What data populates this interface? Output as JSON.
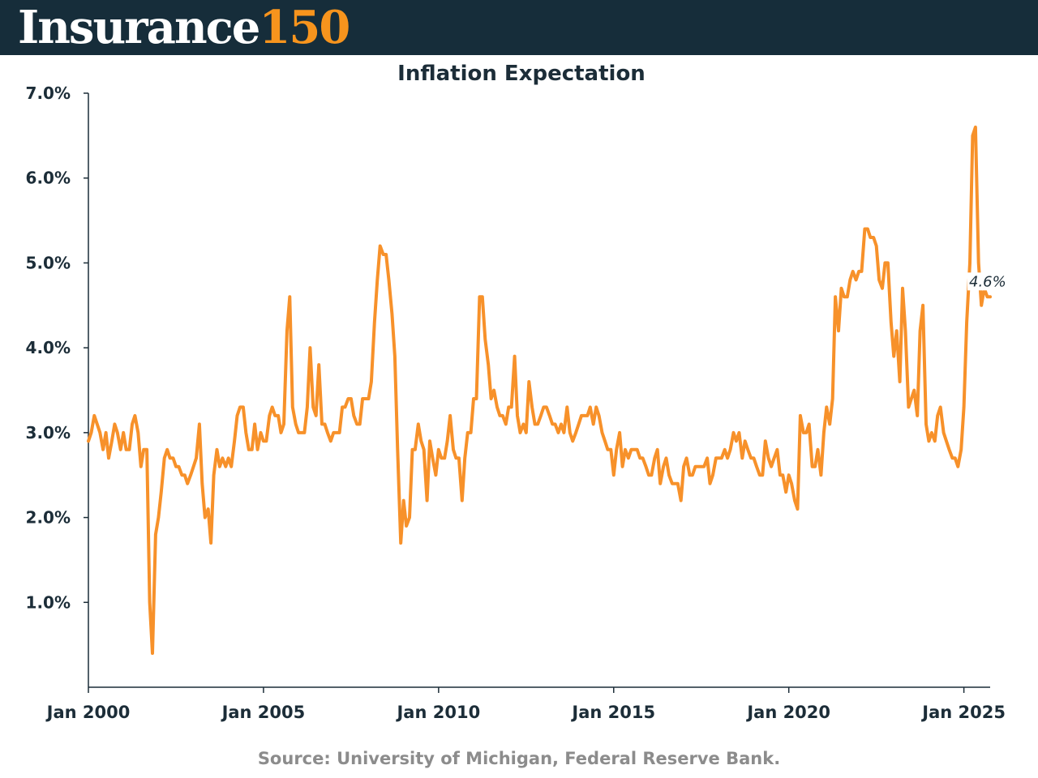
{
  "brand": {
    "name_word": "Insurance",
    "name_number": "150"
  },
  "source": "Source: University of Michigan, Federal Reserve Bank.",
  "colors": {
    "header_bg": "#162d3a",
    "accent": "#f7941d",
    "line": "#f7912a",
    "text": "#1c2d38",
    "source_text": "#8c8c8c"
  },
  "chart_data": {
    "type": "line",
    "title": "Inflation Expectation",
    "xlabel": "",
    "ylabel": "",
    "ylim": [
      0,
      7
    ],
    "xlim_years": [
      2000.0,
      2025.75
    ],
    "grid": false,
    "y_ticks": [
      {
        "value": 1,
        "label": "1.0%"
      },
      {
        "value": 2,
        "label": "2.0%"
      },
      {
        "value": 3,
        "label": "3.0%"
      },
      {
        "value": 4,
        "label": "4.0%"
      },
      {
        "value": 5,
        "label": "5.0%"
      },
      {
        "value": 6,
        "label": "6.0%"
      },
      {
        "value": 7,
        "label": "7.0%"
      }
    ],
    "x_ticks": [
      {
        "year": 2000,
        "label": "Jan 2000"
      },
      {
        "year": 2005,
        "label": "Jan 2005"
      },
      {
        "year": 2010,
        "label": "Jan 2010"
      },
      {
        "year": 2015,
        "label": "Jan 2015"
      },
      {
        "year": 2020,
        "label": "Jan 2020"
      },
      {
        "year": 2025,
        "label": "Jan 2025"
      }
    ],
    "end_label": "4.6%",
    "series": [
      {
        "name": "Inflation Expectation",
        "x": [
          2000.0,
          2000.08,
          2000.17,
          2000.25,
          2000.33,
          2000.42,
          2000.5,
          2000.58,
          2000.67,
          2000.75,
          2000.83,
          2000.92,
          2001.0,
          2001.08,
          2001.17,
          2001.25,
          2001.33,
          2001.42,
          2001.5,
          2001.58,
          2001.67,
          2001.75,
          2001.83,
          2001.92,
          2002.0,
          2002.08,
          2002.17,
          2002.25,
          2002.33,
          2002.42,
          2002.5,
          2002.58,
          2002.67,
          2002.75,
          2002.83,
          2002.92,
          2003.0,
          2003.08,
          2003.17,
          2003.25,
          2003.33,
          2003.42,
          2003.5,
          2003.58,
          2003.67,
          2003.75,
          2003.83,
          2003.92,
          2004.0,
          2004.08,
          2004.17,
          2004.25,
          2004.33,
          2004.42,
          2004.5,
          2004.58,
          2004.67,
          2004.75,
          2004.83,
          2004.92,
          2005.0,
          2005.08,
          2005.17,
          2005.25,
          2005.33,
          2005.42,
          2005.5,
          2005.58,
          2005.67,
          2005.75,
          2005.83,
          2005.92,
          2006.0,
          2006.08,
          2006.17,
          2006.25,
          2006.33,
          2006.42,
          2006.5,
          2006.58,
          2006.67,
          2006.75,
          2006.83,
          2006.92,
          2007.0,
          2007.08,
          2007.17,
          2007.25,
          2007.33,
          2007.42,
          2007.5,
          2007.58,
          2007.67,
          2007.75,
          2007.83,
          2007.92,
          2008.0,
          2008.08,
          2008.17,
          2008.25,
          2008.33,
          2008.42,
          2008.5,
          2008.58,
          2008.67,
          2008.75,
          2008.83,
          2008.92,
          2009.0,
          2009.08,
          2009.17,
          2009.25,
          2009.33,
          2009.42,
          2009.5,
          2009.58,
          2009.67,
          2009.75,
          2009.83,
          2009.92,
          2010.0,
          2010.08,
          2010.17,
          2010.25,
          2010.33,
          2010.42,
          2010.5,
          2010.58,
          2010.67,
          2010.75,
          2010.83,
          2010.92,
          2011.0,
          2011.08,
          2011.17,
          2011.25,
          2011.33,
          2011.42,
          2011.5,
          2011.58,
          2011.67,
          2011.75,
          2011.83,
          2011.92,
          2012.0,
          2012.08,
          2012.17,
          2012.25,
          2012.33,
          2012.42,
          2012.5,
          2012.58,
          2012.67,
          2012.75,
          2012.83,
          2012.92,
          2013.0,
          2013.08,
          2013.17,
          2013.25,
          2013.33,
          2013.42,
          2013.5,
          2013.58,
          2013.67,
          2013.75,
          2013.83,
          2013.92,
          2014.0,
          2014.08,
          2014.17,
          2014.25,
          2014.33,
          2014.42,
          2014.5,
          2014.58,
          2014.67,
          2014.75,
          2014.83,
          2014.92,
          2015.0,
          2015.08,
          2015.17,
          2015.25,
          2015.33,
          2015.42,
          2015.5,
          2015.58,
          2015.67,
          2015.75,
          2015.83,
          2015.92,
          2016.0,
          2016.08,
          2016.17,
          2016.25,
          2016.33,
          2016.42,
          2016.5,
          2016.58,
          2016.67,
          2016.75,
          2016.83,
          2016.92,
          2017.0,
          2017.08,
          2017.17,
          2017.25,
          2017.33,
          2017.42,
          2017.5,
          2017.58,
          2017.67,
          2017.75,
          2017.83,
          2017.92,
          2018.0,
          2018.08,
          2018.17,
          2018.25,
          2018.33,
          2018.42,
          2018.5,
          2018.58,
          2018.67,
          2018.75,
          2018.83,
          2018.92,
          2019.0,
          2019.08,
          2019.17,
          2019.25,
          2019.33,
          2019.42,
          2019.5,
          2019.58,
          2019.67,
          2019.75,
          2019.83,
          2019.92,
          2020.0,
          2020.08,
          2020.17,
          2020.25,
          2020.33,
          2020.42,
          2020.5,
          2020.58,
          2020.67,
          2020.75,
          2020.83,
          2020.92,
          2021.0,
          2021.08,
          2021.17,
          2021.25,
          2021.33,
          2021.42,
          2021.5,
          2021.58,
          2021.67,
          2021.75,
          2021.83,
          2021.92,
          2022.0,
          2022.08,
          2022.17,
          2022.25,
          2022.33,
          2022.42,
          2022.5,
          2022.58,
          2022.67,
          2022.75,
          2022.83,
          2022.92,
          2023.0,
          2023.08,
          2023.17,
          2023.25,
          2023.33,
          2023.42,
          2023.5,
          2023.58,
          2023.67,
          2023.75,
          2023.83,
          2023.92,
          2024.0,
          2024.08,
          2024.17,
          2024.25,
          2024.33,
          2024.42,
          2024.5,
          2024.58,
          2024.67,
          2024.75,
          2024.83,
          2024.92,
          2025.0,
          2025.08,
          2025.17,
          2025.25,
          2025.33,
          2025.42,
          2025.5,
          2025.58,
          2025.67,
          2025.75
        ],
        "values": [
          2.9,
          3.0,
          3.2,
          3.1,
          3.0,
          2.8,
          3.0,
          2.7,
          2.9,
          3.1,
          3.0,
          2.8,
          3.0,
          2.8,
          2.8,
          3.1,
          3.2,
          3.0,
          2.6,
          2.8,
          2.8,
          1.0,
          0.4,
          1.8,
          2.0,
          2.3,
          2.7,
          2.8,
          2.7,
          2.7,
          2.6,
          2.6,
          2.5,
          2.5,
          2.4,
          2.5,
          2.6,
          2.7,
          3.1,
          2.4,
          2.0,
          2.1,
          1.7,
          2.5,
          2.8,
          2.6,
          2.7,
          2.6,
          2.7,
          2.6,
          2.9,
          3.2,
          3.3,
          3.3,
          3.0,
          2.8,
          2.8,
          3.1,
          2.8,
          3.0,
          2.9,
          2.9,
          3.2,
          3.3,
          3.2,
          3.2,
          3.0,
          3.1,
          4.2,
          4.6,
          3.3,
          3.1,
          3.0,
          3.0,
          3.0,
          3.3,
          4.0,
          3.3,
          3.2,
          3.8,
          3.1,
          3.1,
          3.0,
          2.9,
          3.0,
          3.0,
          3.0,
          3.3,
          3.3,
          3.4,
          3.4,
          3.2,
          3.1,
          3.1,
          3.4,
          3.4,
          3.4,
          3.6,
          4.3,
          4.8,
          5.2,
          5.1,
          5.1,
          4.8,
          4.4,
          3.9,
          2.8,
          1.7,
          2.2,
          1.9,
          2.0,
          2.8,
          2.8,
          3.1,
          2.9,
          2.8,
          2.2,
          2.9,
          2.7,
          2.5,
          2.8,
          2.7,
          2.7,
          2.9,
          3.2,
          2.8,
          2.7,
          2.7,
          2.2,
          2.7,
          3.0,
          3.0,
          3.4,
          3.4,
          4.6,
          4.6,
          4.1,
          3.8,
          3.4,
          3.5,
          3.3,
          3.2,
          3.2,
          3.1,
          3.3,
          3.3,
          3.9,
          3.2,
          3.0,
          3.1,
          3.0,
          3.6,
          3.3,
          3.1,
          3.1,
          3.2,
          3.3,
          3.3,
          3.2,
          3.1,
          3.1,
          3.0,
          3.1,
          3.0,
          3.3,
          3.0,
          2.9,
          3.0,
          3.1,
          3.2,
          3.2,
          3.2,
          3.3,
          3.1,
          3.3,
          3.2,
          3.0,
          2.9,
          2.8,
          2.8,
          2.5,
          2.8,
          3.0,
          2.6,
          2.8,
          2.7,
          2.8,
          2.8,
          2.8,
          2.7,
          2.7,
          2.6,
          2.5,
          2.5,
          2.7,
          2.8,
          2.4,
          2.6,
          2.7,
          2.5,
          2.4,
          2.4,
          2.4,
          2.2,
          2.6,
          2.7,
          2.5,
          2.5,
          2.6,
          2.6,
          2.6,
          2.6,
          2.7,
          2.4,
          2.5,
          2.7,
          2.7,
          2.7,
          2.8,
          2.7,
          2.8,
          3.0,
          2.9,
          3.0,
          2.7,
          2.9,
          2.8,
          2.7,
          2.7,
          2.6,
          2.5,
          2.5,
          2.9,
          2.7,
          2.6,
          2.7,
          2.8,
          2.5,
          2.5,
          2.3,
          2.5,
          2.4,
          2.2,
          2.1,
          3.2,
          3.0,
          3.0,
          3.1,
          2.6,
          2.6,
          2.8,
          2.5,
          3.0,
          3.3,
          3.1,
          3.4,
          4.6,
          4.2,
          4.7,
          4.6,
          4.6,
          4.8,
          4.9,
          4.8,
          4.9,
          4.9,
          5.4,
          5.4,
          5.3,
          5.3,
          5.2,
          4.8,
          4.7,
          5.0,
          5.0,
          4.3,
          3.9,
          4.2,
          3.6,
          4.7,
          4.2,
          3.3,
          3.4,
          3.5,
          3.2,
          4.2,
          4.5,
          3.1,
          2.9,
          3.0,
          2.9,
          3.2,
          3.3,
          3.0,
          2.9,
          2.8,
          2.7,
          2.7,
          2.6,
          2.8,
          3.3,
          4.3,
          5.0,
          6.5,
          6.6,
          5.0,
          4.5,
          4.7,
          4.6,
          4.6
        ]
      }
    ]
  }
}
